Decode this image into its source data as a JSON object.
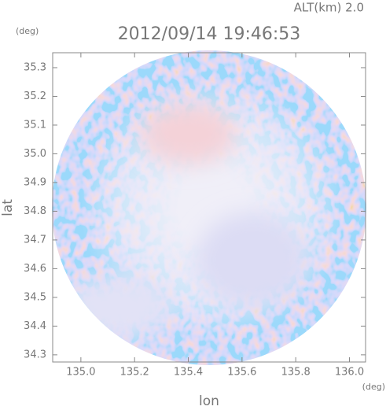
{
  "chart_data": {
    "type": "radar-field",
    "header": "ALT(km) 2.0",
    "title": "2012/09/14 19:46:53",
    "y_unit": "(deg)",
    "x_unit": "(deg)",
    "ylabel": "lat",
    "xlabel": "lon",
    "xlim": [
      134.895,
      136.06
    ],
    "ylim": [
      34.275,
      35.352
    ],
    "xticks": [
      {
        "value": 135,
        "label": "135.0"
      },
      135.2,
      135.4,
      135.6,
      135.8,
      {
        "value": 136,
        "label": "136.0"
      }
    ],
    "yticks": [
      35.3,
      35.2,
      35.1,
      {
        "value": 35,
        "label": "35.0"
      },
      34.9,
      34.8,
      34.7,
      34.6,
      34.5,
      34.4,
      34.3
    ]
  }
}
